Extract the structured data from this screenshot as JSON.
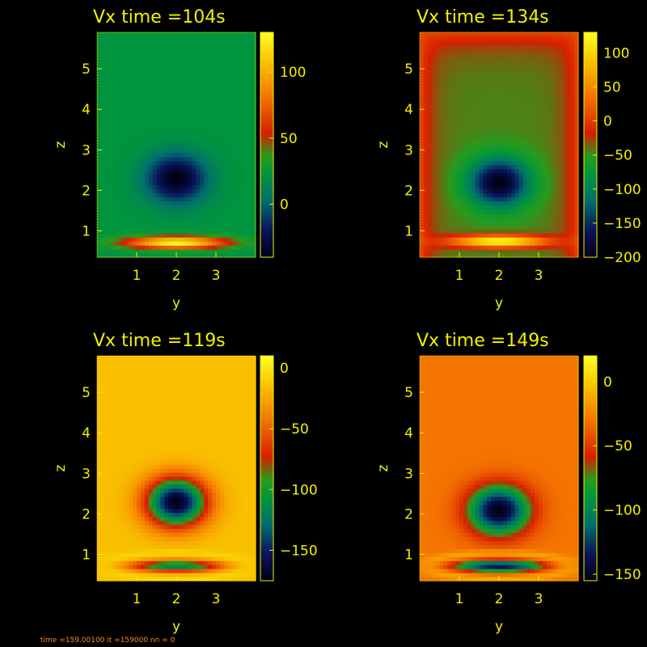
{
  "footer_text": "time =159.00100 it =159000  nn = 0",
  "colors": {
    "background": "#000000",
    "text": "#f4f000",
    "footer": "#ff8a1e"
  },
  "chart_data": [
    {
      "type": "heatmap",
      "title": "Vx   time =104s",
      "xlabel": "y",
      "ylabel": "z",
      "xlim": [
        0.0,
        4.0
      ],
      "ylim": [
        0.35,
        5.9
      ],
      "x_ticks": [
        1,
        2,
        3
      ],
      "y_ticks": [
        1,
        2,
        3,
        4,
        5
      ],
      "colorbar": {
        "range": [
          -40,
          130
        ],
        "ticks": [
          0,
          50,
          100
        ],
        "colormap": "blue-green-red-yellow"
      },
      "features": {
        "background": 22,
        "vortex_center": [
          2.0,
          2.3
        ],
        "vortex_value": -40,
        "band_z": 0.72,
        "band_value": 130
      }
    },
    {
      "type": "heatmap",
      "title": "Vx   time =134s",
      "xlabel": "y",
      "ylabel": "z",
      "xlim": [
        0.0,
        4.0
      ],
      "ylim": [
        0.35,
        5.9
      ],
      "x_ticks": [
        1,
        2,
        3
      ],
      "y_ticks": [
        1,
        2,
        3,
        4,
        5
      ],
      "colorbar": {
        "range": [
          -200,
          130
        ],
        "ticks": [
          -200,
          -150,
          -100,
          -50,
          0,
          50,
          100
        ],
        "colormap": "blue-green-red-yellow"
      },
      "features": {
        "background": -45,
        "wall_value": 10,
        "vortex_center": [
          2.0,
          2.2
        ],
        "vortex_value": -200,
        "band_z": 0.75,
        "band_value": 130
      }
    },
    {
      "type": "heatmap",
      "title": "Vx   time =119s",
      "xlabel": "y",
      "ylabel": "z",
      "xlim": [
        0.0,
        4.0
      ],
      "ylim": [
        0.35,
        5.9
      ],
      "x_ticks": [
        1,
        2,
        3
      ],
      "y_ticks": [
        1,
        2,
        3,
        4,
        5
      ],
      "colorbar": {
        "range": [
          -175,
          10
        ],
        "ticks": [
          -150,
          -100,
          -50,
          0
        ],
        "colormap": "blue-green-red-yellow"
      },
      "features": {
        "background": -15,
        "vortex_center": [
          2.0,
          2.3
        ],
        "vortex_value": -175,
        "band_z": 0.72,
        "band_value": -120
      }
    },
    {
      "type": "heatmap",
      "title": "Vx   time =149s",
      "xlabel": "y",
      "ylabel": "z",
      "xlim": [
        0.0,
        4.0
      ],
      "ylim": [
        0.35,
        5.9
      ],
      "x_ticks": [
        1,
        2,
        3
      ],
      "y_ticks": [
        1,
        2,
        3,
        4,
        5
      ],
      "colorbar": {
        "range": [
          -155,
          20
        ],
        "ticks": [
          -150,
          -100,
          -50,
          0
        ],
        "colormap": "blue-green-red-yellow"
      },
      "features": {
        "background": -30,
        "vortex_center": [
          2.0,
          2.1
        ],
        "vortex_value": -155,
        "band_z": 0.72,
        "band_value": -140
      }
    }
  ]
}
